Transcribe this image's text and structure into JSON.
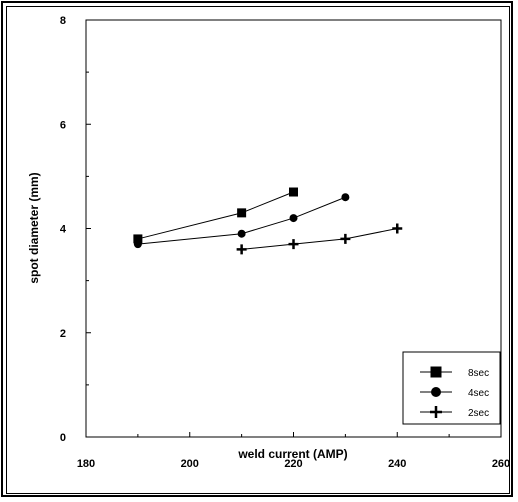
{
  "chart_data": {
    "type": "line",
    "title": "",
    "xlabel": "weld current (AMP)",
    "ylabel": "spot diameter (mm)",
    "xlim": [
      180,
      260
    ],
    "ylim": [
      0,
      8
    ],
    "xticks": [
      180,
      200,
      220,
      240,
      260
    ],
    "yticks": [
      0,
      2,
      4,
      6,
      8
    ],
    "grid": false,
    "legend_position": "bottom-right",
    "series": [
      {
        "name": "8sec",
        "marker": "square",
        "points": [
          [
            190,
            3.8
          ],
          [
            210,
            4.3
          ],
          [
            220,
            4.7
          ]
        ]
      },
      {
        "name": "4sec",
        "marker": "circle",
        "points": [
          [
            190,
            3.7
          ],
          [
            210,
            3.9
          ],
          [
            220,
            4.2
          ],
          [
            230,
            4.6
          ]
        ]
      },
      {
        "name": "2sec",
        "marker": "plus",
        "points": [
          [
            210,
            3.6
          ],
          [
            220,
            3.7
          ],
          [
            230,
            3.8
          ],
          [
            240,
            4.0
          ]
        ]
      }
    ]
  }
}
